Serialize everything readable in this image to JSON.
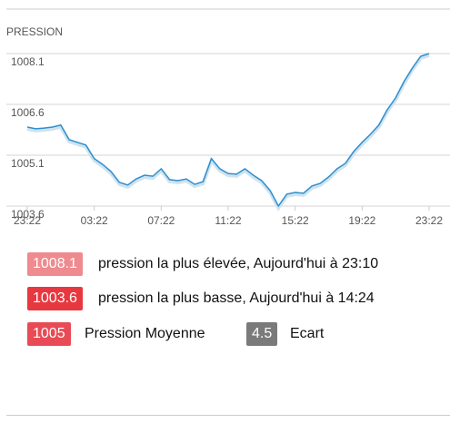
{
  "chart_data": {
    "type": "line",
    "title": "PRESSION",
    "categories": [
      "23:22",
      null,
      null,
      null,
      null,
      null,
      null,
      null,
      "03:22",
      null,
      null,
      null,
      null,
      null,
      null,
      null,
      "07:22",
      null,
      null,
      null,
      null,
      null,
      null,
      null,
      "11:22",
      null,
      null,
      null,
      null,
      null,
      null,
      null,
      "15:22",
      null,
      null,
      null,
      null,
      null,
      null,
      null,
      "19:22",
      null,
      null,
      null,
      null,
      null,
      null,
      null,
      "23:22"
    ],
    "series": [
      {
        "color": "#2f8fcf",
        "values": [
          1005.93,
          1005.88,
          1005.9,
          1005.93,
          1005.99,
          1005.56,
          1005.48,
          1005.4,
          1005.0,
          1004.83,
          1004.62,
          1004.3,
          1004.22,
          1004.4,
          1004.51,
          1004.48,
          1004.7,
          1004.38,
          1004.35,
          1004.4,
          1004.24,
          1004.32,
          1005.0,
          1004.7,
          1004.56,
          1004.54,
          1004.7,
          1004.51,
          1004.35,
          1004.06,
          1003.6,
          1003.95,
          1004.0,
          1003.98,
          1004.19,
          1004.27,
          1004.46,
          1004.7,
          1004.86,
          1005.21,
          1005.48,
          1005.72,
          1005.99,
          1006.44,
          1006.79,
          1007.27,
          1007.67,
          1008.02,
          1008.1
        ]
      }
    ],
    "ylim": [
      1003.6,
      1008.1
    ],
    "yticks": [
      1003.6,
      1005.1,
      1006.6,
      1008.1
    ],
    "grid": true
  },
  "stats": [
    {
      "value": 1008.1,
      "label": "pression la plus élevée, Aujourd'hui à 23:10",
      "color": "#ef8a8f"
    },
    {
      "value": 1003.6,
      "label": "pression la plus basse, Aujourd'hui à 14:24",
      "color": "#e8383f"
    },
    {
      "value": 1005,
      "label": "Pression Moyenne",
      "color": "#e84b55"
    },
    {
      "value": 4.5,
      "label": "Ecart",
      "color": "#7a7a7a"
    }
  ]
}
